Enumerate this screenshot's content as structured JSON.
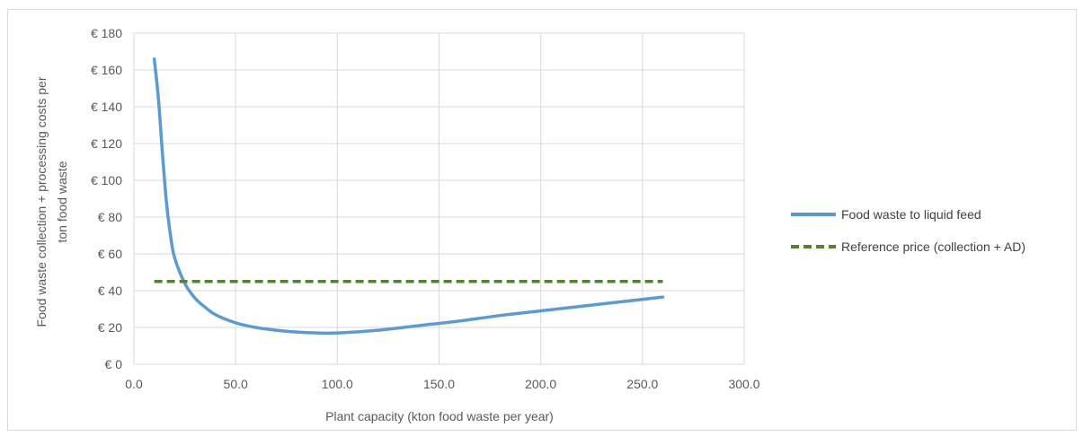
{
  "chart_data": {
    "type": "line",
    "xlabel": "Plant capacity (kton food waste per year)",
    "ylabel_lines": [
      "Food waste collection + processing  costs per",
      "ton food waste"
    ],
    "xlim": [
      0,
      300
    ],
    "ylim": [
      0,
      180
    ],
    "x_ticks": [
      0,
      50,
      100,
      150,
      200,
      250,
      300
    ],
    "x_tick_labels": [
      "0.0",
      "50.0",
      "100.0",
      "150.0",
      "200.0",
      "250.0",
      "300.0"
    ],
    "y_ticks": [
      0,
      20,
      40,
      60,
      80,
      100,
      120,
      140,
      160,
      180
    ],
    "y_tick_labels": [
      "€ 0",
      "€ 20",
      "€ 40",
      "€ 60",
      "€ 80",
      "€ 100",
      "€ 120",
      "€ 140",
      "€ 160",
      "€ 180"
    ],
    "grid": true,
    "legend_position": "right",
    "series": [
      {
        "name": "Food waste to liquid feed",
        "color": "#5b9bd5",
        "style": "solid",
        "x": [
          10,
          12,
          14,
          16,
          18,
          20,
          25,
          30,
          35,
          40,
          50,
          60,
          70,
          80,
          90,
          100,
          120,
          140,
          160,
          180,
          200,
          220,
          240,
          260
        ],
        "y": [
          166,
          145,
          115,
          88,
          70,
          58,
          44,
          36,
          31,
          27,
          22.5,
          20,
          18.5,
          17.5,
          17,
          17,
          18.5,
          21,
          23.5,
          26.5,
          29,
          31.5,
          34,
          36.5
        ]
      },
      {
        "name": "Reference price (collection + AD)",
        "color": "#548235",
        "style": "dashed",
        "x": [
          10,
          260
        ],
        "y": [
          45,
          45
        ]
      }
    ]
  }
}
